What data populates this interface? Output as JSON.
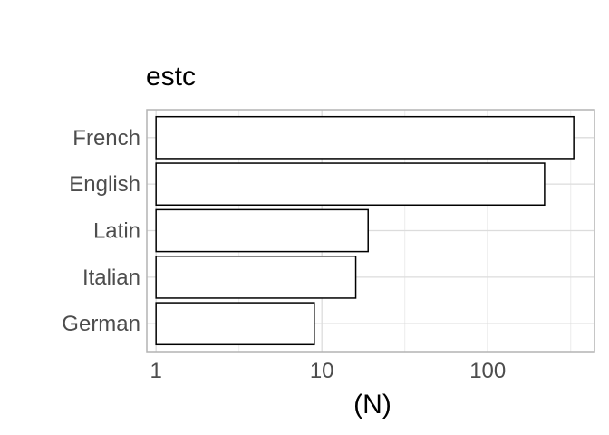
{
  "chart_data": {
    "type": "bar",
    "orientation": "horizontal",
    "title": "estc",
    "xlabel": "(N)",
    "ylabel": "",
    "x_scale": "log10",
    "xlim": [
      0.88,
      440
    ],
    "x_ticks": [
      1,
      10,
      100
    ],
    "x_tick_labels": [
      "1",
      "10",
      "100"
    ],
    "categories": [
      "French",
      "English",
      "Latin",
      "Italian",
      "German"
    ],
    "values": [
      330,
      220,
      19,
      16,
      9
    ],
    "bar_baseline": 1,
    "bar_fill": "#ffffff",
    "bar_outline": "#000000",
    "grid": true,
    "legend": "none"
  }
}
